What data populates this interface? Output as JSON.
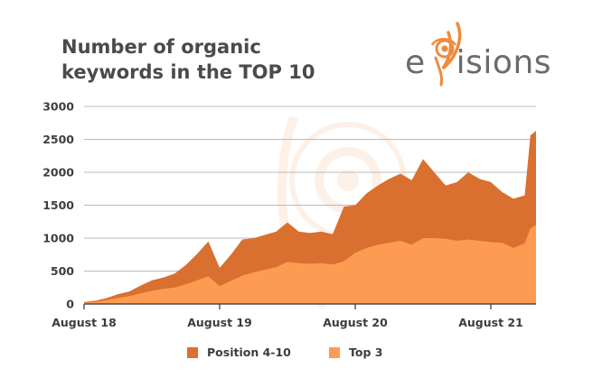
{
  "header": {
    "title_line1": "Number of organic",
    "title_line2": "keywords in the TOP 10",
    "logo_text_left": "e",
    "logo_text_right": "isions"
  },
  "colors": {
    "position_4_10": "#d9702f",
    "top_3": "#fd9b52",
    "grid": "#bbbbbb",
    "axis": "#333333",
    "logo_orange": "#f08a3c",
    "logo_gray": "#6b6b6b"
  },
  "chart_data": {
    "type": "area",
    "title": "Number of organic keywords in the TOP 10",
    "stacked": true,
    "xlim": [
      0,
      40
    ],
    "x_ticks": [
      0,
      12,
      24,
      36
    ],
    "x_tick_labels": [
      "August 18",
      "August 19",
      "August 20",
      "August 21"
    ],
    "ylim": [
      0,
      3000
    ],
    "y_ticks": [
      0,
      500,
      1000,
      1500,
      2000,
      2500,
      3000
    ],
    "grid": true,
    "legend_position": "bottom",
    "x": [
      0,
      1,
      2,
      3,
      4,
      5,
      6,
      7,
      8,
      9,
      10,
      11,
      12,
      13,
      14,
      15,
      16,
      17,
      18,
      19,
      20,
      21,
      22,
      23,
      24,
      25,
      26,
      27,
      28,
      29,
      30,
      31,
      32,
      33,
      34,
      35,
      36,
      37,
      38,
      39,
      39.5,
      40
    ],
    "series": [
      {
        "name": "Position 4-10",
        "total_values": [
          30,
          50,
          90,
          150,
          190,
          280,
          360,
          400,
          460,
          590,
          760,
          950,
          550,
          750,
          980,
          1000,
          1050,
          1100,
          1240,
          1100,
          1080,
          1100,
          1060,
          1480,
          1500,
          1680,
          1800,
          1900,
          1980,
          1880,
          2200,
          2000,
          1800,
          1850,
          2000,
          1900,
          1850,
          1700,
          1600,
          1650,
          2560,
          2630
        ]
      },
      {
        "name": "Top 3",
        "values": [
          20,
          30,
          60,
          90,
          120,
          160,
          200,
          230,
          250,
          300,
          360,
          420,
          270,
          350,
          430,
          480,
          520,
          560,
          640,
          620,
          610,
          620,
          600,
          650,
          780,
          850,
          900,
          930,
          960,
          900,
          1000,
          1000,
          990,
          960,
          980,
          960,
          940,
          930,
          850,
          920,
          1150,
          1200
        ]
      }
    ]
  }
}
